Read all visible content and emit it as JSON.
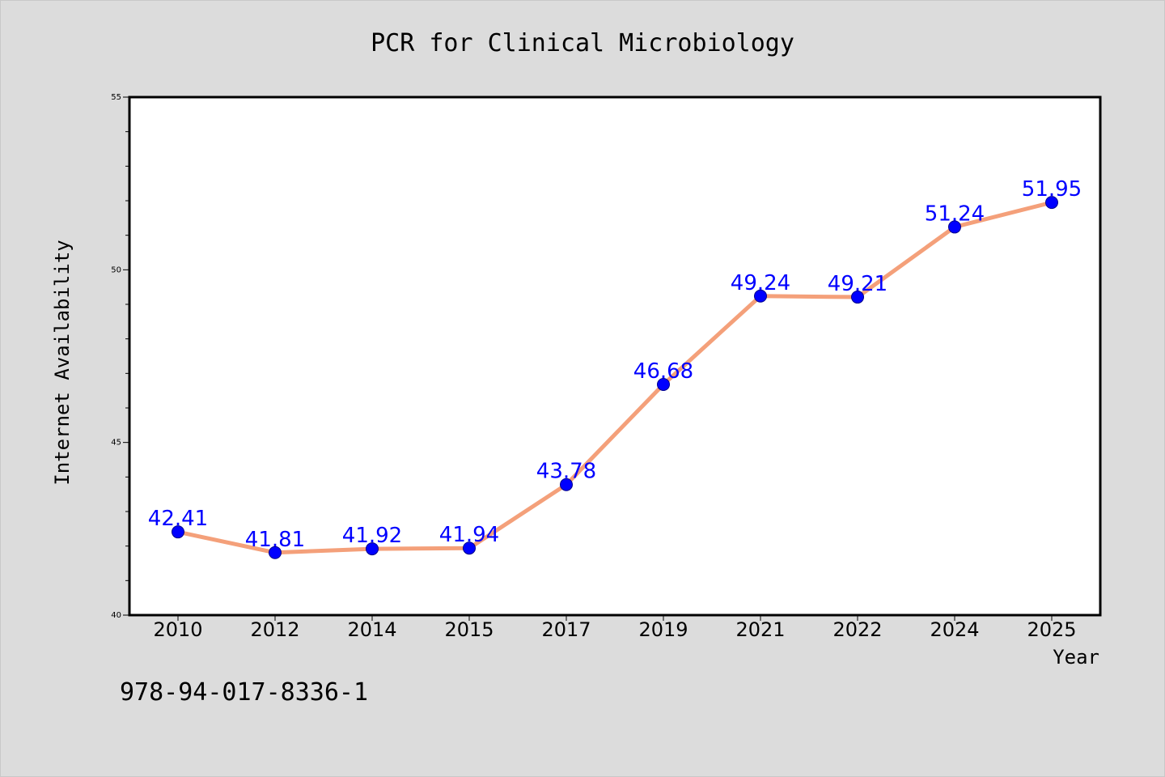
{
  "chart_data": {
    "type": "line",
    "title": "PCR for Clinical Microbiology",
    "xlabel": "Year",
    "ylabel": "Internet Availability",
    "categories": [
      "2010",
      "2012",
      "2014",
      "2015",
      "2017",
      "2019",
      "2021",
      "2022",
      "2024",
      "2025"
    ],
    "series": [
      {
        "values": [
          42.41,
          41.81,
          41.92,
          41.94,
          43.78,
          46.68,
          49.24,
          49.21,
          51.24,
          51.95
        ],
        "data_labels": [
          "42.41",
          "41.81",
          "41.92",
          "41.94",
          "43.78",
          "46.68",
          "49.24",
          "49.21",
          "51.24",
          "51.95"
        ]
      }
    ],
    "ylim": [
      40,
      55
    ],
    "yticks": [
      "40",
      "45",
      "50",
      "55"
    ],
    "grid": false,
    "legend": "none"
  },
  "footnote": "978-94-017-8336-1",
  "colors": {
    "background": "#dcdcdc",
    "plot_background": "#ffffff",
    "line": "#f4a07a",
    "marker": "#0000ff",
    "data_label": "#0000ff"
  }
}
